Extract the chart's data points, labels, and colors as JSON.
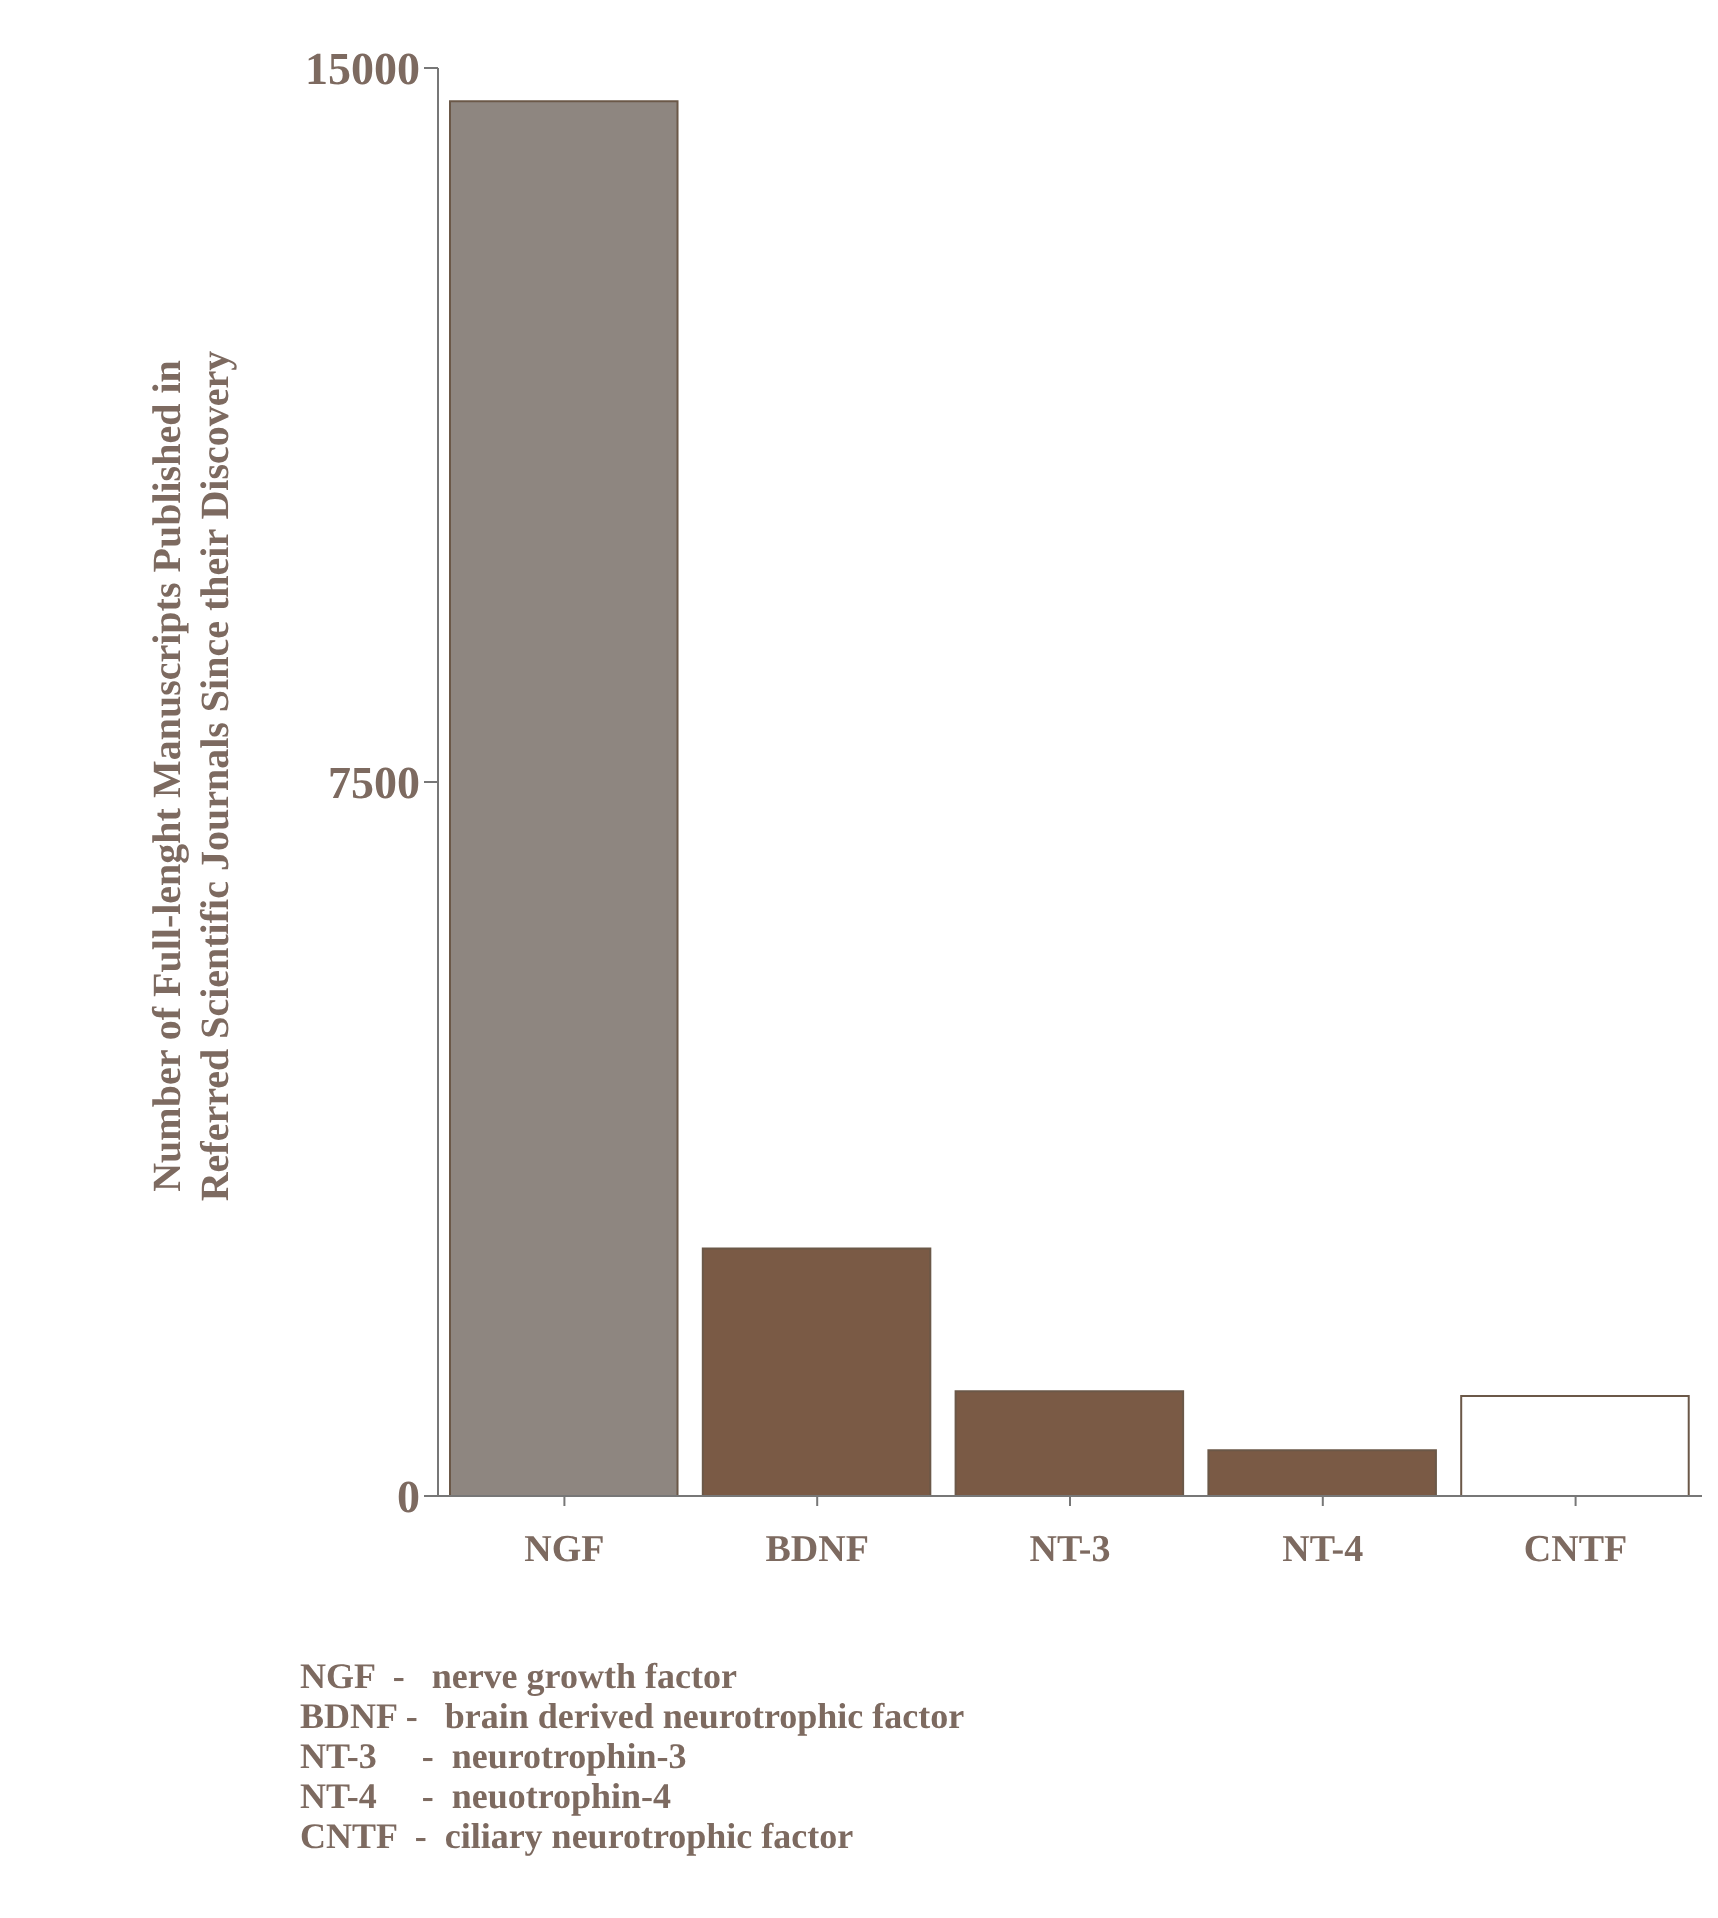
{
  "chart_data": {
    "type": "bar",
    "ylabel": "Number of Full-lenght Manuscripts Published in Referred Scientific Journals Since their Discovery",
    "categories": [
      "NGF",
      "BDNF",
      "NT-3",
      "NT-4",
      "CNTF"
    ],
    "values": [
      14650,
      2600,
      1100,
      480,
      1050
    ],
    "colors": [
      "#8e8680",
      "#7a5a45",
      "#7a5a45",
      "#7a5a45",
      "#ffffff"
    ],
    "ylim": [
      0,
      15000
    ],
    "yticks": [
      0,
      7500,
      15000
    ],
    "grid": false,
    "legend": false,
    "annotations": [
      "NGF  -   nerve growth factor",
      "BDNF -   brain derived neurotrophic factor",
      "NT-3     -  neurotrophin-3",
      "NT-4     -  neuotrophin-4",
      "CNTF  -  ciliary neurotrophic factor"
    ]
  }
}
